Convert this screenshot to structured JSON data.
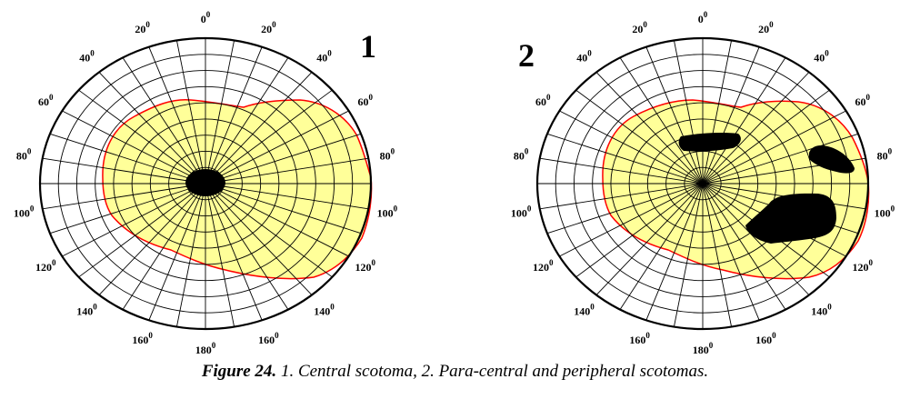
{
  "figure": {
    "panels": [
      {
        "id": "1",
        "label": "1",
        "angle_labels": [
          {
            "deg": 0,
            "num": "0",
            "sup": "0"
          },
          {
            "deg": 20,
            "num": "20",
            "sup": "0"
          },
          {
            "deg": 40,
            "num": "40",
            "sup": "0"
          },
          {
            "deg": 60,
            "num": "60",
            "sup": "0"
          },
          {
            "deg": 80,
            "num": "80",
            "sup": "0"
          },
          {
            "deg": 100,
            "num": "100",
            "sup": "0"
          },
          {
            "deg": 120,
            "num": "120",
            "sup": "0"
          },
          {
            "deg": 140,
            "num": "140",
            "sup": "0"
          },
          {
            "deg": 160,
            "num": "160",
            "sup": "0"
          },
          {
            "deg": 180,
            "num": "180",
            "sup": "0"
          },
          {
            "deg": -20,
            "num": "20",
            "sup": "0"
          },
          {
            "deg": -40,
            "num": "40",
            "sup": "0"
          },
          {
            "deg": -60,
            "num": "60",
            "sup": "0"
          },
          {
            "deg": -80,
            "num": "80",
            "sup": "0"
          },
          {
            "deg": -100,
            "num": "100",
            "sup": "0"
          },
          {
            "deg": -120,
            "num": "120",
            "sup": "0"
          },
          {
            "deg": -140,
            "num": "140",
            "sup": "0"
          },
          {
            "deg": -160,
            "num": "160",
            "sup": "0"
          }
        ]
      },
      {
        "id": "2",
        "label": "2",
        "angle_labels": [
          {
            "deg": 0,
            "num": "0",
            "sup": "0"
          },
          {
            "deg": 20,
            "num": "20",
            "sup": "0"
          },
          {
            "deg": 40,
            "num": "40",
            "sup": "0"
          },
          {
            "deg": 60,
            "num": "60",
            "sup": "0"
          },
          {
            "deg": 80,
            "num": "80",
            "sup": "0"
          },
          {
            "deg": 100,
            "num": "100",
            "sup": "0"
          },
          {
            "deg": 120,
            "num": "120",
            "sup": "0"
          },
          {
            "deg": 140,
            "num": "140",
            "sup": "0"
          },
          {
            "deg": 160,
            "num": "160",
            "sup": "0"
          },
          {
            "deg": 180,
            "num": "180",
            "sup": "0"
          },
          {
            "deg": -20,
            "num": "20",
            "sup": "0"
          },
          {
            "deg": -40,
            "num": "40",
            "sup": "0"
          },
          {
            "deg": -60,
            "num": "60",
            "sup": "0"
          },
          {
            "deg": -80,
            "num": "80",
            "sup": "0"
          },
          {
            "deg": -100,
            "num": "100",
            "sup": "0"
          },
          {
            "deg": -120,
            "num": "120",
            "sup": "0"
          },
          {
            "deg": -140,
            "num": "140",
            "sup": "0"
          },
          {
            "deg": -160,
            "num": "160",
            "sup": "0"
          }
        ]
      }
    ],
    "colors": {
      "field_fill": "#ffff99",
      "field_border": "#ff0000",
      "scotoma": "#000000",
      "grid": "#000000"
    }
  },
  "caption": {
    "label": "Figure 24.",
    "text": " 1. Central scotoma, 2. Para-central and peripheral scotomas."
  }
}
